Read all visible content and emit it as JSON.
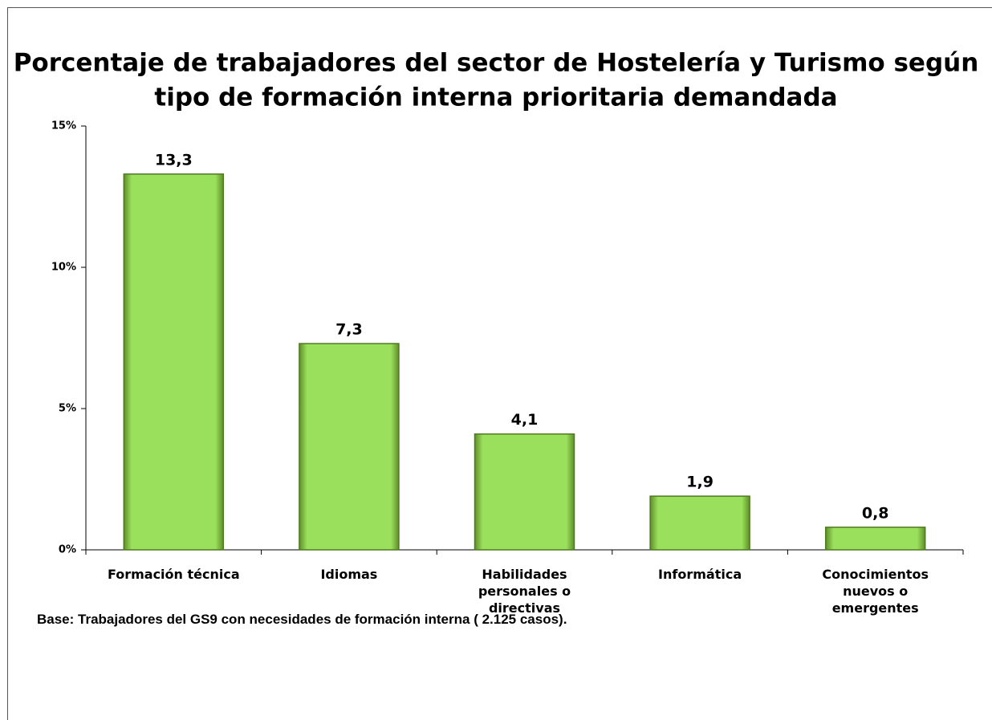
{
  "chart_data": {
    "type": "bar",
    "title": [
      "Porcentaje de trabajadores del sector de Hostelería y Turismo según",
      "tipo de formación interna prioritaria demandada"
    ],
    "categories": [
      "Formación técnica",
      "Idiomas",
      "Habilidades personales o directivas",
      "Informática",
      "Conocimientos nuevos o emergentes"
    ],
    "values": [
      13.3,
      7.3,
      4.1,
      1.9,
      0.8
    ],
    "value_labels": [
      "13,3",
      "7,3",
      "4,1",
      "1,9",
      "0,8"
    ],
    "color": "#92d050",
    "ylim": [
      0,
      15
    ],
    "yticks": [
      {
        "value": 0,
        "label": "0%"
      },
      {
        "value": 5,
        "label": "5%"
      },
      {
        "value": 10,
        "label": "10%"
      },
      {
        "value": 15,
        "label": "15%"
      }
    ],
    "grid": false,
    "note": "Base: Trabajadores del GS9 con necesidades de formación interna ( 2.125 casos)."
  }
}
